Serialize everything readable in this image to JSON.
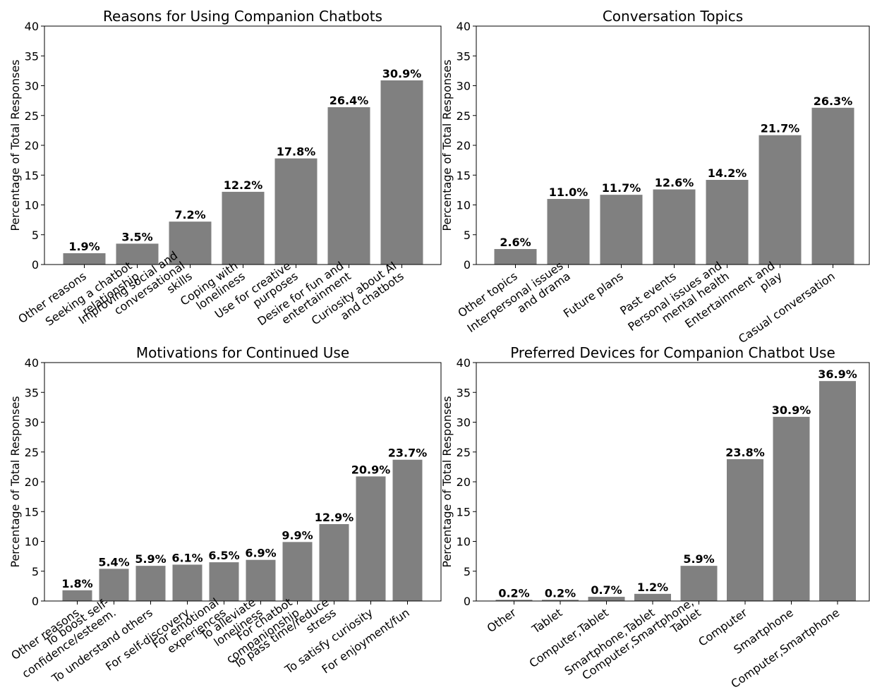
{
  "chart_data": [
    {
      "type": "bar",
      "title": "Reasons for Using Companion Chatbots",
      "ylabel": "Percentage of Total Responses",
      "ylim": [
        0,
        40
      ],
      "yticks": [
        "0",
        "5",
        "10",
        "15",
        "20",
        "25",
        "30",
        "35",
        "40"
      ],
      "categories": [
        [
          "Other reasons"
        ],
        [
          "Seeking a chatbot",
          "relationship"
        ],
        [
          "Improving social and",
          "conversational",
          "skills"
        ],
        [
          "Coping with",
          "loneliness"
        ],
        [
          "Use for creative",
          "purposes"
        ],
        [
          "Desire for fun and",
          "entertainment"
        ],
        [
          "Curiosity about AI",
          "and chatbots"
        ]
      ],
      "values": [
        1.9,
        3.5,
        7.2,
        12.2,
        17.8,
        26.4,
        30.9
      ],
      "labels": [
        "1.9%",
        "3.5%",
        "7.2%",
        "12.2%",
        "17.8%",
        "26.4%",
        "30.9%"
      ],
      "color": "#808080"
    },
    {
      "type": "bar",
      "title": "Conversation Topics",
      "ylabel": "Percentage of Total Responses",
      "ylim": [
        0,
        40
      ],
      "yticks": [
        "0",
        "5",
        "10",
        "15",
        "20",
        "25",
        "30",
        "35",
        "40"
      ],
      "categories": [
        [
          "Other topics"
        ],
        [
          "Interpersonal issues",
          "and drama"
        ],
        [
          "Future plans"
        ],
        [
          "Past events"
        ],
        [
          "Personal issues and",
          "mental health"
        ],
        [
          "Entertainment and",
          "play"
        ],
        [
          "Casual conversation"
        ]
      ],
      "values": [
        2.6,
        11.0,
        11.7,
        12.6,
        14.2,
        21.7,
        26.3
      ],
      "labels": [
        "2.6%",
        "11.0%",
        "11.7%",
        "12.6%",
        "14.2%",
        "21.7%",
        "26.3%"
      ],
      "color": "#808080"
    },
    {
      "type": "bar",
      "title": "Motivations for Continued Use",
      "ylabel": "Percentage of Total Responses",
      "ylim": [
        0,
        40
      ],
      "yticks": [
        "0",
        "5",
        "10",
        "15",
        "20",
        "25",
        "30",
        "35",
        "40"
      ],
      "categories": [
        [
          "Other reasons"
        ],
        [
          "To boost self-",
          "confidence/esteem."
        ],
        [
          "To understand others"
        ],
        [
          "For self-discovery"
        ],
        [
          "For emotional",
          "experiences"
        ],
        [
          "To alleviate",
          "loneliness"
        ],
        [
          "For chatbot",
          "companionship"
        ],
        [
          "To pass time/reduce",
          "stress"
        ],
        [
          "To satisfy curiosity"
        ],
        [
          "For enjoyment/fun"
        ]
      ],
      "values": [
        1.8,
        5.4,
        5.9,
        6.1,
        6.5,
        6.9,
        9.9,
        12.9,
        20.9,
        23.7
      ],
      "labels": [
        "1.8%",
        "5.4%",
        "5.9%",
        "6.1%",
        "6.5%",
        "6.9%",
        "9.9%",
        "12.9%",
        "20.9%",
        "23.7%"
      ],
      "color": "#808080"
    },
    {
      "type": "bar",
      "title": "Preferred Devices for Companion Chatbot Use",
      "ylabel": "Percentage of Total Responses",
      "ylim": [
        0,
        40
      ],
      "yticks": [
        "0",
        "5",
        "10",
        "15",
        "20",
        "25",
        "30",
        "35",
        "40"
      ],
      "categories": [
        [
          "Other"
        ],
        [
          "Tablet"
        ],
        [
          "Computer,Tablet"
        ],
        [
          "Smartphone,Tablet"
        ],
        [
          "Computer,Smartphone,",
          "Tablet"
        ],
        [
          "Computer"
        ],
        [
          "Smartphone"
        ],
        [
          "Computer,Smartphone"
        ]
      ],
      "values": [
        0.2,
        0.2,
        0.7,
        1.2,
        5.9,
        23.8,
        30.9,
        36.9
      ],
      "labels": [
        "0.2%",
        "0.2%",
        "0.7%",
        "1.2%",
        "5.9%",
        "23.8%",
        "30.9%",
        "36.9%"
      ],
      "color": "#808080"
    }
  ]
}
